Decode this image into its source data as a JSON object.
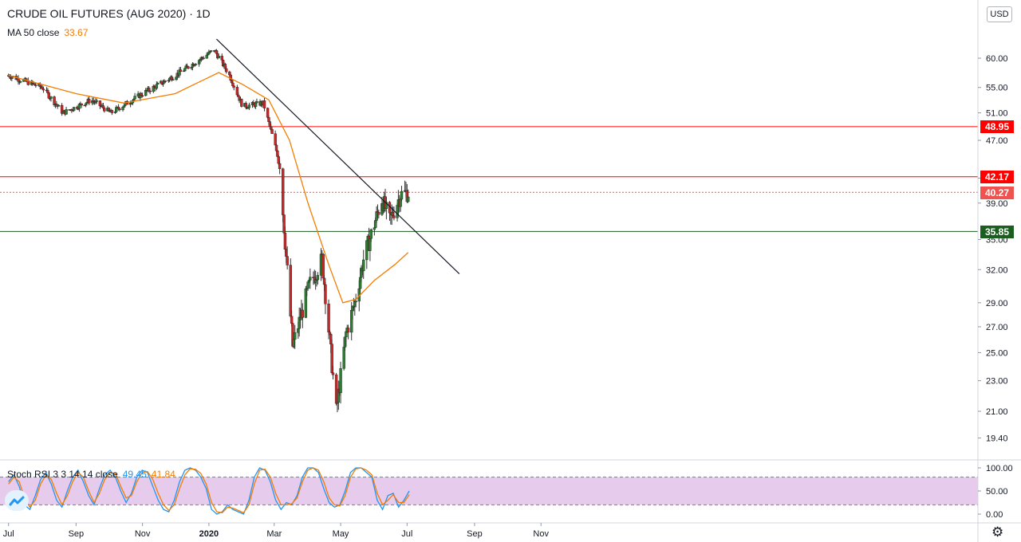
{
  "header": {
    "title": "CRUDE OIL FUTURES (AUG 2020) · 1D",
    "ma_label": "MA 50 close",
    "ma_value": "33.67",
    "stoch_label": "Stoch RSI 3 3 14 14 close",
    "stoch_k_value": "49.45",
    "stoch_d_value": "41.84",
    "currency": "USD"
  },
  "price_levels": [
    {
      "label": "48.95",
      "value": 48.95,
      "color": "#ff0000",
      "style": "solid"
    },
    {
      "label": "42.17",
      "value": 42.17,
      "color": "#ff0000",
      "style": "solid"
    },
    {
      "label": "40.27",
      "value": 40.27,
      "color": "#ef5350",
      "style": "dotted"
    },
    {
      "label": "35.85",
      "value": 35.85,
      "color": "#1b5e20",
      "style": "solid"
    }
  ],
  "chart_data": [
    {
      "type": "candlestick",
      "title": "CRUDE OIL FUTURES (AUG 2020) · 1D",
      "x_axis_labels": [
        "Jul",
        "Sep",
        "Nov",
        "2020",
        "Mar",
        "May",
        "Jul",
        "Sep",
        "Nov"
      ],
      "y_axis_labels": [
        "60.00",
        "55.00",
        "51.00",
        "47.00",
        "42.00",
        "39.00",
        "35.00",
        "32.00",
        "29.00",
        "27.00",
        "25.00",
        "23.00",
        "21.00",
        "19.40"
      ],
      "y_scale": "log",
      "ylim": [
        18.5,
        65
      ],
      "close_path_approx": [
        {
          "x": "2019-07-01",
          "y": 57.0
        },
        {
          "x": "2019-08-01",
          "y": 55.0
        },
        {
          "x": "2019-08-20",
          "y": 51.0
        },
        {
          "x": "2019-09-15",
          "y": 53.0
        },
        {
          "x": "2019-10-03",
          "y": 51.0
        },
        {
          "x": "2019-11-01",
          "y": 54.0
        },
        {
          "x": "2019-12-01",
          "y": 57.0
        },
        {
          "x": "2020-01-06",
          "y": 61.5
        },
        {
          "x": "2020-01-20",
          "y": 57.0
        },
        {
          "x": "2020-02-01",
          "y": 52.0
        },
        {
          "x": "2020-02-20",
          "y": 52.5
        },
        {
          "x": "2020-03-06",
          "y": 44.0
        },
        {
          "x": "2020-03-09",
          "y": 38.0
        },
        {
          "x": "2020-03-18",
          "y": 25.5
        },
        {
          "x": "2020-04-02",
          "y": 30.5
        },
        {
          "x": "2020-04-14",
          "y": 33.0
        },
        {
          "x": "2020-04-27",
          "y": 21.0
        },
        {
          "x": "2020-05-06",
          "y": 26.5
        },
        {
          "x": "2020-05-14",
          "y": 29.0
        },
        {
          "x": "2020-05-22",
          "y": 33.0
        },
        {
          "x": "2020-06-08",
          "y": 39.5
        },
        {
          "x": "2020-06-15",
          "y": 37.0
        },
        {
          "x": "2020-06-25",
          "y": 40.0
        },
        {
          "x": "2020-07-02",
          "y": 40.27
        }
      ],
      "series": [
        {
          "name": "MA 50 close",
          "color": "#f57c00",
          "points": [
            {
              "x": "2019-07-01",
              "y": 57.0
            },
            {
              "x": "2019-09-01",
              "y": 54.0
            },
            {
              "x": "2019-10-15",
              "y": 52.5
            },
            {
              "x": "2019-12-01",
              "y": 54.0
            },
            {
              "x": "2020-01-10",
              "y": 57.5
            },
            {
              "x": "2020-02-01",
              "y": 55.5
            },
            {
              "x": "2020-02-25",
              "y": 53.0
            },
            {
              "x": "2020-03-15",
              "y": 47.0
            },
            {
              "x": "2020-04-01",
              "y": 39.0
            },
            {
              "x": "2020-04-20",
              "y": 32.5
            },
            {
              "x": "2020-05-03",
              "y": 29.0
            },
            {
              "x": "2020-05-15",
              "y": 29.3
            },
            {
              "x": "2020-06-01",
              "y": 31.0
            },
            {
              "x": "2020-06-20",
              "y": 32.5
            },
            {
              "x": "2020-07-02",
              "y": 33.67
            }
          ]
        }
      ],
      "trendline": {
        "from": {
          "x": "2020-01-08",
          "y": 63.5
        },
        "to": {
          "x": "2020-08-18",
          "y": 31.6
        }
      },
      "horizontal_lines": [
        48.95,
        42.17,
        40.27,
        35.85
      ]
    },
    {
      "type": "line",
      "title": "Stoch RSI 3 3 14 14 close",
      "y_axis_labels": [
        "100.00",
        "50.00",
        "0.00"
      ],
      "ylim": [
        0,
        100
      ],
      "band": [
        20,
        80
      ],
      "series": [
        {
          "name": "K",
          "color": "#2196f3",
          "values": [
            70,
            85,
            60,
            20,
            10,
            40,
            75,
            90,
            65,
            30,
            15,
            50,
            80,
            95,
            70,
            40,
            20,
            55,
            85,
            95,
            80,
            50,
            25,
            45,
            80,
            95,
            90,
            60,
            30,
            10,
            5,
            30,
            70,
            95,
            100,
            95,
            80,
            55,
            10,
            0,
            5,
            20,
            10,
            5,
            0,
            30,
            80,
            100,
            95,
            70,
            30,
            10,
            25,
            20,
            40,
            80,
            100,
            100,
            90,
            55,
            25,
            15,
            20,
            50,
            90,
            100,
            100,
            90,
            80,
            30,
            10,
            40,
            45,
            15,
            30,
            50
          ]
        },
        {
          "name": "D",
          "color": "#f57c00",
          "values": [
            65,
            80,
            70,
            35,
            15,
            30,
            65,
            85,
            75,
            45,
            20,
            40,
            70,
            90,
            80,
            50,
            25,
            45,
            75,
            90,
            88,
            60,
            35,
            40,
            70,
            90,
            92,
            75,
            45,
            20,
            8,
            20,
            55,
            85,
            98,
            97,
            88,
            65,
            25,
            5,
            3,
            15,
            13,
            8,
            3,
            20,
            65,
            95,
            97,
            80,
            45,
            20,
            20,
            22,
            35,
            70,
            95,
            100,
            95,
            70,
            35,
            20,
            18,
            40,
            80,
            98,
            100,
            95,
            85,
            45,
            20,
            30,
            42,
            25,
            25,
            42
          ]
        }
      ]
    }
  ]
}
